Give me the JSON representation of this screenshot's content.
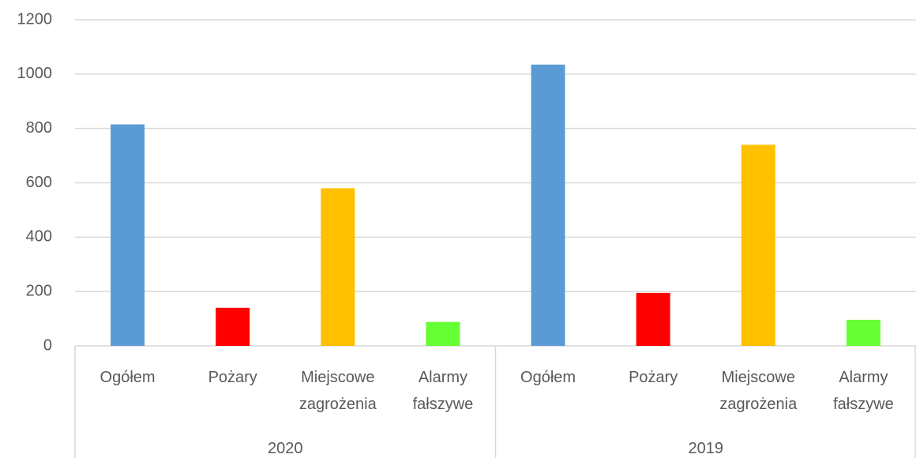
{
  "chart_data": {
    "type": "bar",
    "categories": [
      "Ogółem",
      "Pożary",
      "Miejscowe zagrożenia",
      "Alarmy fałszywe"
    ],
    "colors": [
      "#5b9bd5",
      "#ff0000",
      "#ffc000",
      "#66ff33"
    ],
    "groups": [
      {
        "name": "2020",
        "values": [
          815,
          140,
          580,
          88
        ]
      },
      {
        "name": "2019",
        "values": [
          1035,
          195,
          740,
          96
        ]
      }
    ],
    "ylim": [
      0,
      1200
    ],
    "yticks": [
      0,
      200,
      400,
      600,
      800,
      1000,
      1200
    ],
    "grid": true
  }
}
